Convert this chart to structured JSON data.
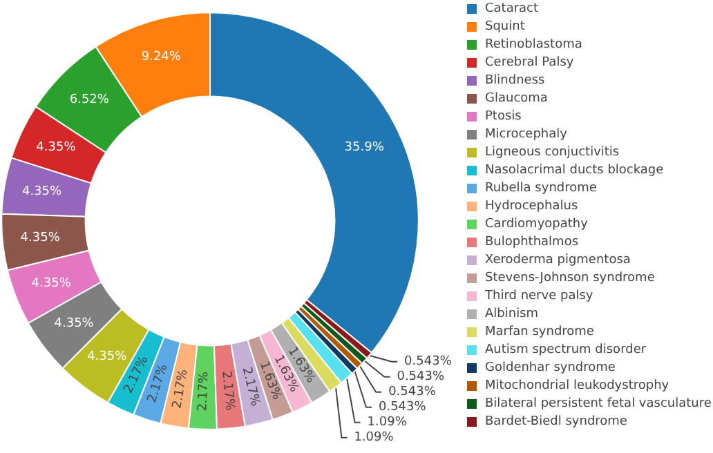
{
  "chart_data": {
    "type": "donut",
    "categories": [
      "Cataract",
      "Squint",
      "Retinoblastoma",
      "Cerebral Palsy",
      "Blindness",
      "Glaucoma",
      "Ptosis",
      "Microcephaly",
      "Ligneous conjuctivitis",
      "Nasolacrimal ducts blockage",
      "Rubella syndrome",
      "Hydrocephalus",
      "Cardiomyopathy",
      "Bulophthalmos",
      "Xeroderma pigmentosa",
      "Stevens-Johnson syndrome",
      "Third nerve palsy",
      "Albinism",
      "Marfan syndrome",
      "Autism spectrum disorder",
      "Goldenhar syndrome",
      "Mitochondrial leukodystrophy",
      "Bilateral persistent fetal vasculature",
      "Bardet-Biedl syndrome"
    ],
    "values": [
      35.9,
      9.24,
      6.52,
      4.35,
      4.35,
      4.35,
      4.35,
      4.35,
      4.35,
      2.17,
      2.17,
      2.17,
      2.17,
      2.17,
      2.17,
      1.63,
      1.63,
      1.63,
      1.09,
      1.09,
      0.543,
      0.543,
      0.543,
      0.543
    ],
    "colors": [
      "#1f77b4",
      "#ff7f0e",
      "#2ca02c",
      "#d62728",
      "#9467bd",
      "#8c564b",
      "#e377c2",
      "#7f7f7f",
      "#bcbd22",
      "#17becf",
      "#5aa9e6",
      "#ffb27a",
      "#5fd35f",
      "#e8777a",
      "#c5b0d5",
      "#c49c94",
      "#f7b6d2",
      "#b0b0b0",
      "#dbdb5d",
      "#57e0ed",
      "#0e3a63",
      "#b35806",
      "#0f5a1a",
      "#8a1a1a"
    ],
    "value_labels": [
      "35.9%",
      "9.24%",
      "6.52%",
      "4.35%",
      "4.35%",
      "4.35%",
      "4.35%",
      "4.35%",
      "4.35%",
      "2.17%",
      "2.17%",
      "2.17%",
      "2.17%",
      "2.17%",
      "2.17%",
      "1.63%",
      "1.63%",
      "1.63%",
      "1.09%",
      "1.09%",
      "0.543%",
      "0.543%",
      "0.543%",
      "0.543%"
    ],
    "legend": "right"
  }
}
